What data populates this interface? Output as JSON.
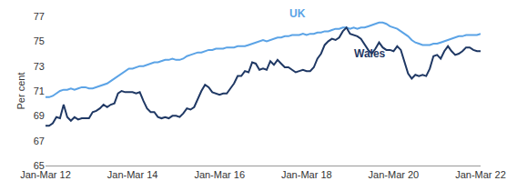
{
  "chart_data": {
    "type": "line",
    "y_label": "Per cent",
    "categories": [
      "Jan-Mar 12",
      null,
      null,
      null,
      null,
      null,
      null,
      null,
      null,
      null,
      null,
      null,
      null,
      null,
      null,
      null,
      null,
      null,
      null,
      null,
      null,
      null,
      null,
      null,
      "Jan-Mar 14",
      null,
      null,
      null,
      null,
      null,
      null,
      null,
      null,
      null,
      null,
      null,
      null,
      null,
      null,
      null,
      null,
      null,
      null,
      null,
      null,
      null,
      null,
      null,
      "Jan-Mar 16",
      null,
      null,
      null,
      null,
      null,
      null,
      null,
      null,
      null,
      null,
      null,
      null,
      null,
      null,
      null,
      null,
      null,
      null,
      null,
      null,
      null,
      null,
      null,
      "Jan-Mar 18",
      null,
      null,
      null,
      null,
      null,
      null,
      null,
      null,
      null,
      null,
      null,
      null,
      null,
      null,
      null,
      null,
      null,
      null,
      null,
      null,
      null,
      null,
      null,
      "Jan-Mar 20",
      null,
      null,
      null,
      null,
      null,
      null,
      null,
      null,
      null,
      null,
      null,
      null,
      null,
      null,
      null,
      null,
      null,
      null,
      null,
      null,
      null,
      null,
      null,
      "Jan-Mar 22"
    ],
    "series": [
      {
        "name": "UK",
        "color": "#5ba3e6",
        "values": [
          70.5,
          70.5,
          70.6,
          70.8,
          71.0,
          71.1,
          71.1,
          71.2,
          71.1,
          71.2,
          71.3,
          71.3,
          71.2,
          71.2,
          71.3,
          71.4,
          71.5,
          71.6,
          71.8,
          72.0,
          72.2,
          72.4,
          72.6,
          72.8,
          72.8,
          72.9,
          73.0,
          73.0,
          73.1,
          73.2,
          73.3,
          73.3,
          73.4,
          73.5,
          73.5,
          73.6,
          73.5,
          73.5,
          73.6,
          73.8,
          73.9,
          74.0,
          74.1,
          74.1,
          74.2,
          74.3,
          74.3,
          74.4,
          74.4,
          74.4,
          74.5,
          74.5,
          74.5,
          74.6,
          74.6,
          74.6,
          74.7,
          74.8,
          74.9,
          75.0,
          75.1,
          75.0,
          75.1,
          75.2,
          75.3,
          75.3,
          75.4,
          75.4,
          75.5,
          75.5,
          75.5,
          75.6,
          75.5,
          75.6,
          75.6,
          75.7,
          75.7,
          75.8,
          75.8,
          75.9,
          76.0,
          76.0,
          76.1,
          76.1,
          76.0,
          76.1,
          76.0,
          76.1,
          76.1,
          76.2,
          76.3,
          76.4,
          76.5,
          76.5,
          76.4,
          76.2,
          76.1,
          76.0,
          75.8,
          75.6,
          75.4,
          75.1,
          74.9,
          74.8,
          74.7,
          74.7,
          74.7,
          74.8,
          74.8,
          74.9,
          75.0,
          75.1,
          75.2,
          75.3,
          75.4,
          75.4,
          75.5,
          75.5,
          75.5,
          75.5,
          75.6
        ]
      },
      {
        "name": "Wales",
        "color": "#1f3864",
        "values": [
          68.2,
          68.2,
          68.4,
          68.9,
          68.8,
          69.9,
          68.9,
          68.6,
          68.9,
          68.7,
          68.8,
          68.8,
          68.8,
          69.3,
          69.4,
          69.6,
          69.9,
          69.7,
          69.9,
          70.0,
          70.8,
          71.0,
          70.9,
          70.9,
          70.9,
          70.8,
          70.9,
          70.2,
          69.6,
          69.3,
          69.3,
          68.9,
          68.8,
          68.9,
          68.8,
          69.0,
          69.0,
          68.9,
          69.2,
          69.6,
          69.5,
          69.7,
          70.4,
          71.0,
          71.5,
          71.3,
          70.9,
          70.8,
          70.7,
          70.8,
          70.8,
          71.2,
          71.6,
          72.2,
          72.2,
          72.6,
          72.5,
          73.3,
          73.2,
          72.7,
          72.8,
          72.7,
          73.4,
          73.1,
          73.5,
          73.2,
          72.9,
          72.9,
          72.7,
          72.5,
          72.6,
          72.7,
          72.6,
          72.6,
          72.9,
          73.6,
          74.0,
          74.7,
          75.0,
          75.2,
          75.1,
          75.3,
          75.8,
          76.1,
          75.6,
          75.5,
          75.4,
          75.2,
          74.7,
          74.3,
          74.0,
          74.4,
          74.9,
          74.5,
          74.3,
          74.3,
          74.2,
          74.6,
          74.3,
          73.4,
          72.4,
          72.0,
          72.3,
          72.2,
          72.3,
          72.2,
          72.8,
          73.8,
          73.9,
          73.6,
          74.2,
          74.6,
          74.2,
          73.9,
          74.0,
          74.2,
          74.5,
          74.5,
          74.3,
          74.2,
          74.2
        ]
      }
    ],
    "ylim": [
      65,
      77
    ],
    "yticks": [
      65,
      67,
      69,
      71,
      73,
      75,
      77
    ],
    "grid": false
  }
}
